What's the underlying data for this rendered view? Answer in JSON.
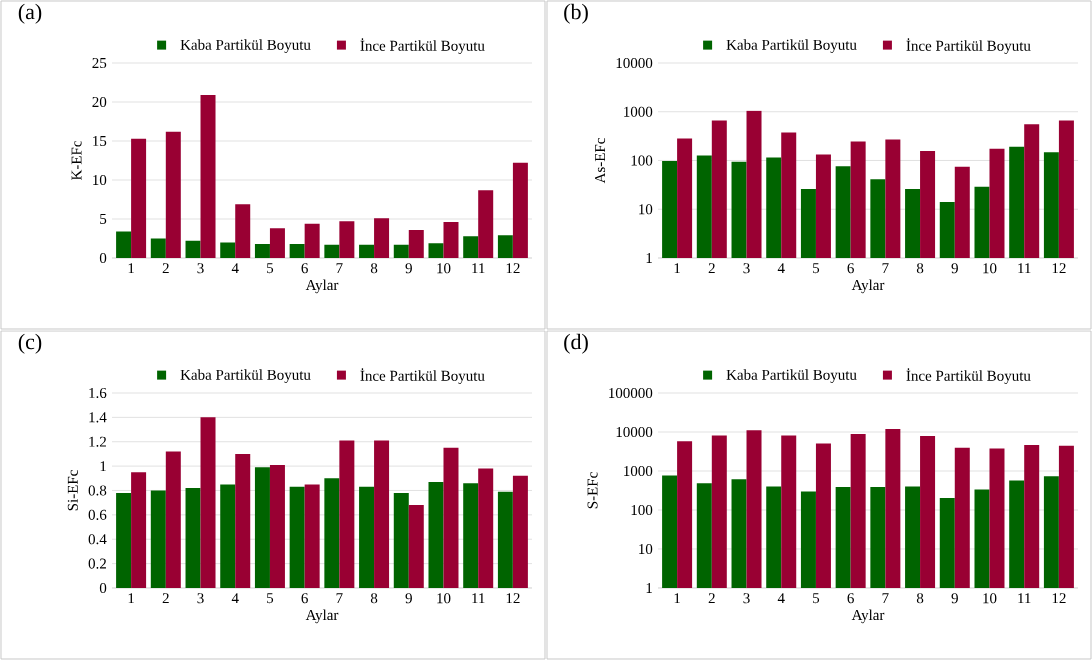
{
  "chart_data": [
    {
      "type": "bar",
      "title": "(a)",
      "xlabel": "Aylar",
      "ylabel": "K-EFc",
      "categories": [
        "1",
        "2",
        "3",
        "4",
        "5",
        "6",
        "7",
        "8",
        "9",
        "10",
        "11",
        "12"
      ],
      "ylim": [
        0,
        25
      ],
      "yticks": [
        0,
        5,
        10,
        15,
        20,
        25
      ],
      "grid": "y",
      "legend": "top",
      "series": [
        {
          "name": "Kaba Partikül Boyutu",
          "color": "#006400",
          "values": [
            3.4,
            2.5,
            2.2,
            2.0,
            1.8,
            1.8,
            1.7,
            1.7,
            1.7,
            1.9,
            2.8,
            2.9
          ]
        },
        {
          "name": "İnce Partikül Boyutu",
          "color": "#990033",
          "values": [
            15.3,
            16.2,
            20.9,
            6.9,
            3.8,
            4.4,
            4.7,
            5.1,
            3.6,
            4.6,
            8.7,
            12.2
          ]
        }
      ]
    },
    {
      "type": "bar",
      "title": "(b)",
      "xlabel": "Aylar",
      "ylabel": "As-EFc",
      "categories": [
        "1",
        "2",
        "3",
        "4",
        "5",
        "6",
        "7",
        "8",
        "9",
        "10",
        "11",
        "12"
      ],
      "log": true,
      "ylim": [
        1,
        10000
      ],
      "yticks": [
        1,
        10,
        100,
        1000,
        10000
      ],
      "grid": "y",
      "legend": "top",
      "series": [
        {
          "name": "Kaba Partikül Boyutu",
          "color": "#006400",
          "values": [
            98,
            127,
            94,
            115,
            26,
            76,
            41,
            26,
            14,
            29,
            193,
            147
          ]
        },
        {
          "name": "İnce Partikül Boyutu",
          "color": "#990033",
          "values": [
            283,
            660,
            1050,
            377,
            133,
            245,
            270,
            156,
            74,
            175,
            553,
            660
          ]
        }
      ]
    },
    {
      "type": "bar",
      "title": "(c)",
      "xlabel": "Aylar",
      "ylabel": "Si-EFc",
      "categories": [
        "1",
        "2",
        "3",
        "4",
        "5",
        "6",
        "7",
        "8",
        "9",
        "10",
        "11",
        "12"
      ],
      "ylim": [
        0,
        1.6
      ],
      "yticks": [
        0,
        0.2,
        0.4,
        0.6,
        0.8,
        1,
        1.2,
        1.4,
        1.6
      ],
      "grid": "y",
      "legend": "top",
      "series": [
        {
          "name": "Kaba Partikül Boyutu",
          "color": "#006400",
          "values": [
            0.78,
            0.8,
            0.82,
            0.85,
            0.99,
            0.83,
            0.9,
            0.83,
            0.78,
            0.87,
            0.86,
            0.79
          ]
        },
        {
          "name": "İnce Partikül Boyutu",
          "color": "#990033",
          "values": [
            0.95,
            1.12,
            1.4,
            1.1,
            1.01,
            0.85,
            1.21,
            1.21,
            0.68,
            1.15,
            0.98,
            0.92
          ]
        }
      ]
    },
    {
      "type": "bar",
      "title": "(d)",
      "xlabel": "Aylar",
      "ylabel": "S-EFc",
      "categories": [
        "1",
        "2",
        "3",
        "4",
        "5",
        "6",
        "7",
        "8",
        "9",
        "10",
        "11",
        "12"
      ],
      "log": true,
      "ylim": [
        1,
        100000
      ],
      "yticks": [
        1,
        10,
        100,
        1000,
        10000,
        100000
      ],
      "grid": "y",
      "legend": "top",
      "series": [
        {
          "name": "Kaba Partikül Boyutu",
          "color": "#006400",
          "values": [
            769,
            483,
            615,
            403,
            298,
            387,
            387,
            403,
            203,
            336,
            567,
            738
          ]
        },
        {
          "name": "İnce Partikül Boyutu",
          "color": "#990033",
          "values": [
            5800,
            8170,
            11060,
            8170,
            5030,
            8850,
            12000,
            7850,
            3950,
            3790,
            4640,
            4460
          ]
        }
      ]
    }
  ]
}
